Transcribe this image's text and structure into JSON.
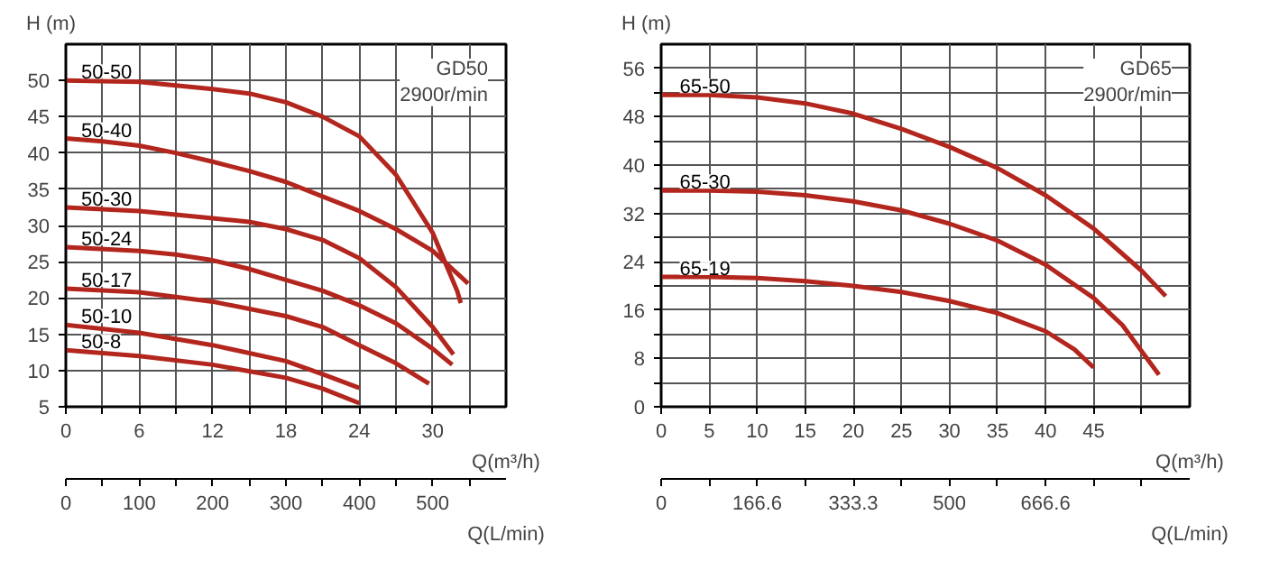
{
  "chart_data": [
    {
      "type": "line",
      "ylabel": "H (m)",
      "xlabel": "Q(m³/h)",
      "x2label": "Q(L/min)",
      "annotations": [
        "GD50",
        "2900r/min"
      ],
      "grid": true,
      "xlim": [
        0,
        36
      ],
      "xticks": [
        0,
        {
          "value": 3,
          "label": null
        },
        6,
        {
          "value": 9,
          "label": null
        },
        12,
        {
          "value": 15,
          "label": null
        },
        18,
        {
          "value": 21,
          "label": null
        },
        24,
        {
          "value": 27,
          "label": null
        },
        30,
        {
          "value": 33,
          "label": null
        }
      ],
      "ylim": [
        5,
        55
      ],
      "yticks": [
        5,
        10,
        15,
        20,
        25,
        30,
        35,
        40,
        45,
        50
      ],
      "x2lim": [
        0,
        600
      ],
      "x2ticks": [
        0,
        {
          "value": 50,
          "label": null
        },
        100,
        {
          "value": 150,
          "label": null
        },
        200,
        {
          "value": 250,
          "label": null
        },
        300,
        {
          "value": 350,
          "label": null
        },
        400,
        {
          "value": 450,
          "label": null
        },
        500,
        {
          "value": 550,
          "label": null
        }
      ],
      "series": [
        {
          "name": "50-50",
          "color": "#b3261e",
          "x": [
            0,
            6,
            12,
            15,
            18,
            21,
            24,
            27,
            30,
            31,
            32,
            32.3
          ],
          "values": [
            50,
            49.8,
            48.8,
            48.2,
            47,
            45,
            42.3,
            37,
            29,
            25,
            21,
            19.3
          ]
        },
        {
          "name": "50-40",
          "color": "#b3261e",
          "x": [
            0,
            3,
            6,
            9,
            12,
            15,
            18,
            21,
            24,
            27,
            30,
            32.9
          ],
          "values": [
            42,
            41.6,
            41,
            40,
            38.8,
            37.5,
            36,
            34,
            32,
            29.5,
            26.5,
            22
          ]
        },
        {
          "name": "50-30",
          "color": "#b3261e",
          "x": [
            0,
            6,
            12,
            15,
            18,
            21,
            24,
            27,
            30,
            31.7
          ],
          "values": [
            32.5,
            32,
            31,
            30.5,
            29.5,
            28,
            25.5,
            21.5,
            16,
            12.2
          ]
        },
        {
          "name": "50-24",
          "color": "#b3261e",
          "x": [
            0,
            6,
            9,
            12,
            15,
            18,
            21,
            24,
            27,
            30,
            31.6
          ],
          "values": [
            27,
            26.5,
            26,
            25.2,
            24,
            22.5,
            21,
            19,
            16.5,
            13,
            10.8
          ]
        },
        {
          "name": "50-17",
          "color": "#b3261e",
          "x": [
            0,
            6,
            12,
            18,
            21,
            24,
            27,
            29.7
          ],
          "values": [
            21.3,
            20.8,
            19.5,
            17.5,
            16,
            13.5,
            11,
            8.2
          ]
        },
        {
          "name": "50-10",
          "color": "#b3261e",
          "x": [
            0,
            6,
            12,
            18,
            21,
            24
          ],
          "values": [
            16.3,
            15.2,
            13.5,
            11.3,
            9.5,
            7.6
          ]
        },
        {
          "name": "50-8",
          "color": "#b3261e",
          "x": [
            0,
            6,
            12,
            18,
            21,
            24
          ],
          "values": [
            12.8,
            12,
            10.8,
            9,
            7.5,
            5.5
          ]
        }
      ]
    },
    {
      "type": "line",
      "ylabel": "H (m)",
      "xlabel": "Q(m³/h)",
      "x2label": "Q(L/min)",
      "annotations": [
        "GD65",
        "2900r/min"
      ],
      "grid": true,
      "xlim": [
        0,
        55
      ],
      "xticks": [
        0,
        5,
        10,
        15,
        20,
        25,
        30,
        35,
        40,
        45,
        {
          "value": 50,
          "label": null
        }
      ],
      "ylim": [
        0,
        60
      ],
      "yticks": [
        0,
        {
          "value": 4,
          "label": null
        },
        8,
        {
          "value": 12,
          "label": null
        },
        16,
        {
          "value": 20,
          "label": null
        },
        24,
        {
          "value": 28,
          "label": null
        },
        32,
        {
          "value": 36,
          "label": null
        },
        40,
        {
          "value": 44,
          "label": null
        },
        48,
        {
          "value": 52,
          "label": null
        },
        56
      ],
      "x2lim": [
        0,
        916.7
      ],
      "x2ticks": [
        0,
        {
          "value": 83.3,
          "label": null
        },
        166.6,
        {
          "value": 250,
          "label": null
        },
        333.3,
        {
          "value": 416.6,
          "label": null
        },
        500,
        {
          "value": 583.3,
          "label": null
        },
        666.6,
        {
          "value": 750,
          "label": null
        },
        {
          "value": 833.3,
          "label": null
        }
      ],
      "series": [
        {
          "name": "65-50",
          "color": "#b3261e",
          "x": [
            0,
            5,
            10,
            15,
            20,
            25,
            30,
            35,
            40,
            45,
            50,
            52.5
          ],
          "values": [
            51.6,
            51.6,
            51.2,
            50.2,
            48.5,
            46,
            43,
            39.5,
            35,
            29.5,
            22.5,
            18.3
          ]
        },
        {
          "name": "65-30",
          "color": "#b3261e",
          "x": [
            0,
            5,
            10,
            15,
            20,
            25,
            30,
            35,
            40,
            45,
            48,
            51.8
          ],
          "values": [
            35.8,
            35.8,
            35.6,
            35,
            34,
            32.5,
            30.3,
            27.5,
            23.5,
            18,
            13.5,
            5.3
          ]
        },
        {
          "name": "65-19",
          "color": "#b3261e",
          "x": [
            0,
            5,
            10,
            15,
            20,
            25,
            30,
            35,
            40,
            43,
            45
          ],
          "values": [
            21.5,
            21.5,
            21.3,
            20.8,
            20,
            19,
            17.5,
            15.5,
            12.5,
            9.5,
            6.5
          ]
        }
      ]
    }
  ]
}
